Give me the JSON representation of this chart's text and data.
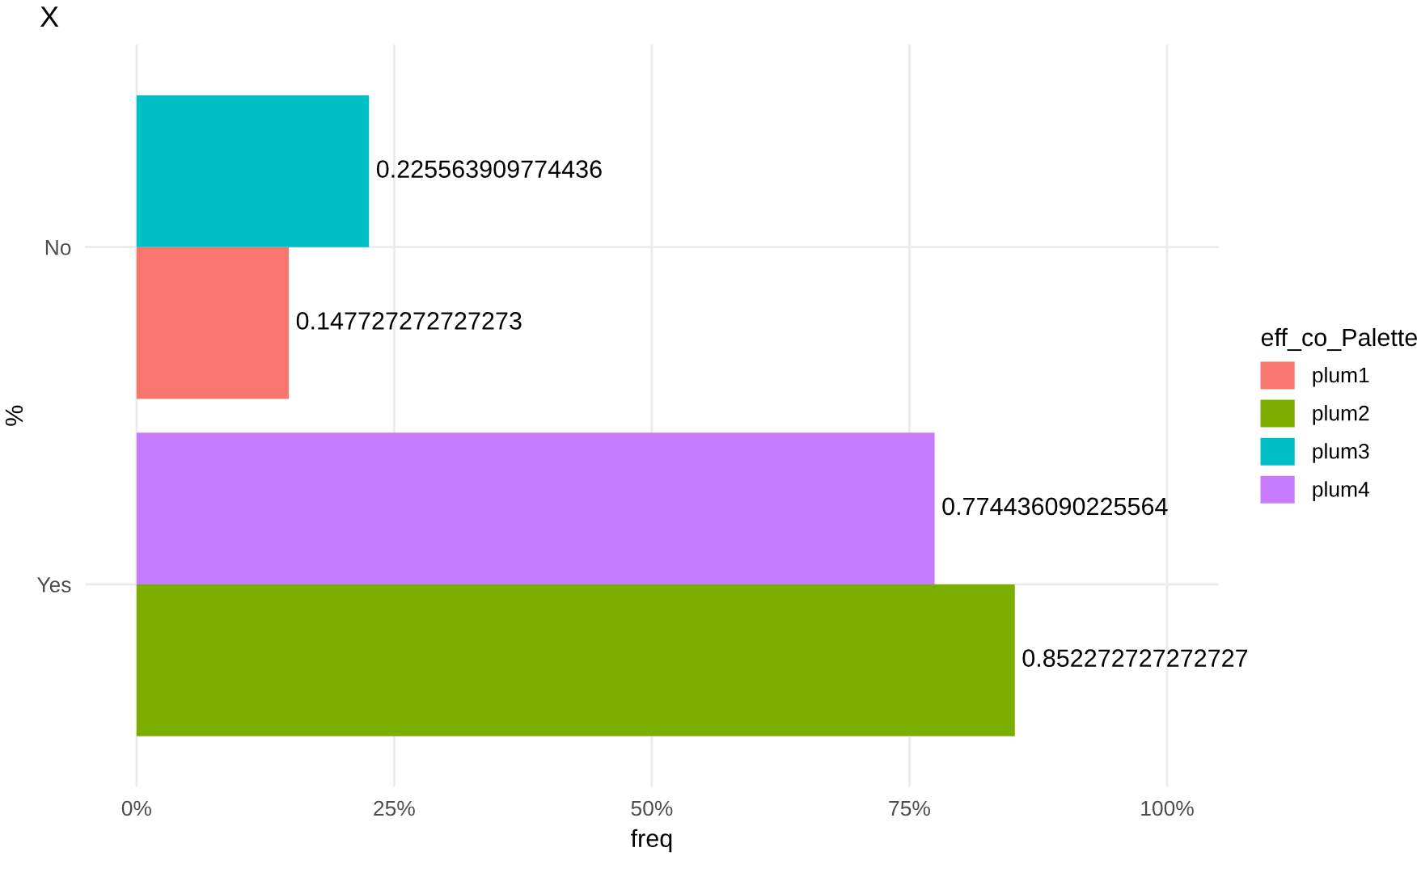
{
  "chart_data": {
    "type": "bar",
    "orientation": "horizontal",
    "title": "X",
    "xlabel": "freq",
    "ylabel": "%",
    "legend_title": "eff_co_Palette",
    "categories": [
      "No",
      "Yes"
    ],
    "series": [
      {
        "name": "plum1",
        "color": "#f8766d",
        "values": [
          0.147727272727273,
          null
        ]
      },
      {
        "name": "plum2",
        "color": "#7cae00",
        "values": [
          null,
          0.852272727272727
        ]
      },
      {
        "name": "plum3",
        "color": "#00bfc4",
        "values": [
          0.225563909774436,
          null
        ]
      },
      {
        "name": "plum4",
        "color": "#c77cff",
        "values": [
          null,
          0.774436090225564
        ]
      }
    ],
    "xlim": [
      -0.05,
      1.05
    ],
    "xticks": [
      {
        "value": 0,
        "label": "0%"
      },
      {
        "value": 0.25,
        "label": "25%"
      },
      {
        "value": 0.5,
        "label": "50%"
      },
      {
        "value": 0.75,
        "label": "75%"
      },
      {
        "value": 1,
        "label": "100%"
      }
    ],
    "data_labels": true,
    "grid": true,
    "legend": "right"
  }
}
